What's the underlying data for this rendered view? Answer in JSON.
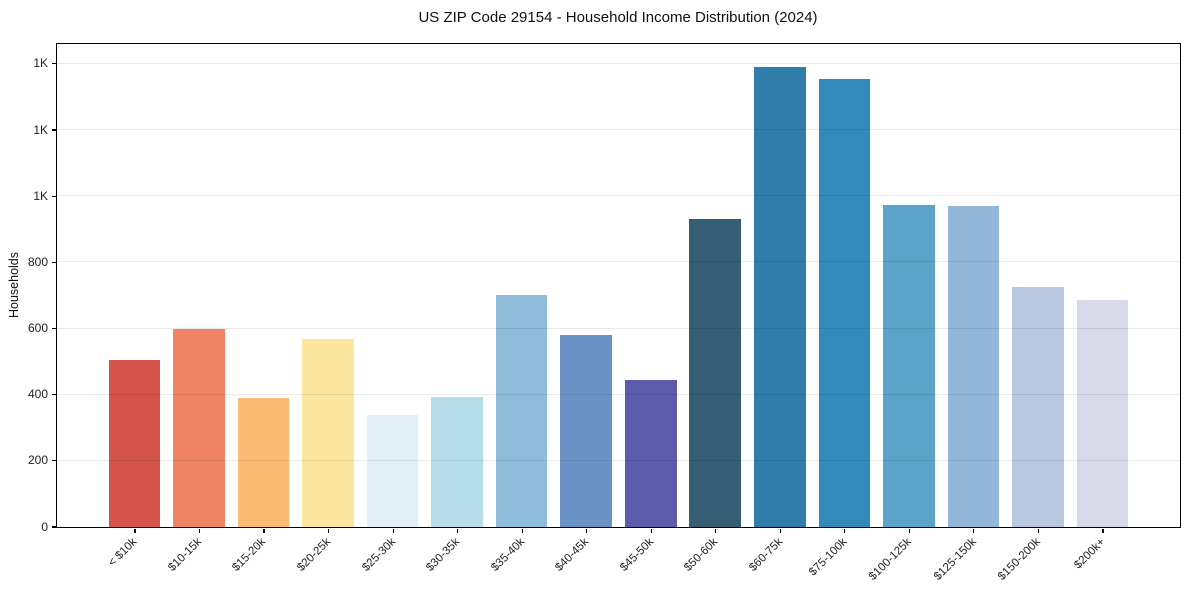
{
  "chart_data": {
    "type": "bar",
    "title": "US ZIP Code 29154 - Household Income Distribution (2024)",
    "xlabel": "",
    "ylabel": "Households",
    "categories": [
      "< $10k",
      "$10-15k",
      "$15-20k",
      "$20-25k",
      "$25-30k",
      "$30-35k",
      "$35-40k",
      "$40-45k",
      "$45-50k",
      "$50-60k",
      "$60-75k",
      "$75-100k",
      "$100-125k",
      "$125-150k",
      "$150-200k",
      "$200k+"
    ],
    "values": [
      503,
      597,
      388,
      566,
      338,
      393,
      700,
      580,
      442,
      929,
      1389,
      1353,
      972,
      969,
      723,
      686
    ],
    "bar_colors": [
      "#d4534b",
      "#f08365",
      "#fbbb74",
      "#fce59d",
      "#e1f0f6",
      "#b7dcea",
      "#8fbcd9",
      "#6b92c5",
      "#5d5bab",
      "#355e74",
      "#2f7da8",
      "#3489bc",
      "#5ba3c9",
      "#93b7d8",
      "#b9c9e1",
      "#d7d9e8"
    ],
    "ylim": [
      0,
      1460
    ],
    "yticks": [
      {
        "value": 0,
        "label": "0"
      },
      {
        "value": 200,
        "label": "200"
      },
      {
        "value": 400,
        "label": "400"
      },
      {
        "value": 600,
        "label": "600"
      },
      {
        "value": 800,
        "label": "800"
      },
      {
        "value": 1000,
        "label": "1K"
      },
      {
        "value": 1200,
        "label": "1K"
      },
      {
        "value": 1400,
        "label": "1K"
      }
    ],
    "grid": "horizontal",
    "legend": "none",
    "x_tick_rotation": 45
  }
}
